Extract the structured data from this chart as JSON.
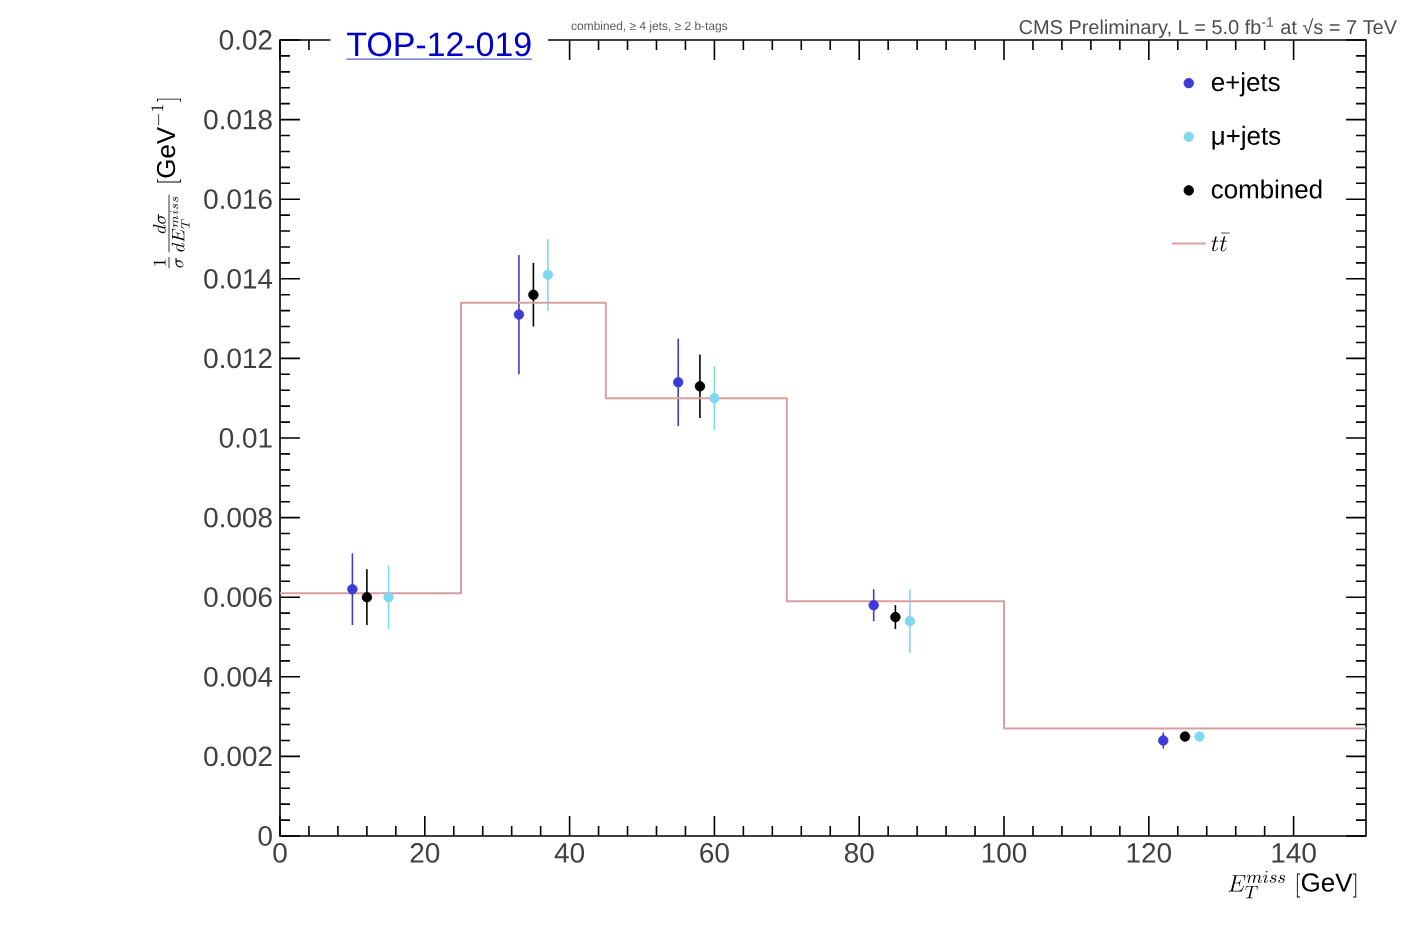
{
  "chart_data": {
    "type": "scatter",
    "title": "CMS Preliminary, L = 5.0 fb$^{-1}$ at √s = 7 TeV",
    "subtitle": "combined, ≥ 4 jets, ≥ 2 b-tags",
    "xlabel": "E_{T}^{miss}\\ [\\mathrm{GeV}]",
    "ylabel": "\\frac{1}{\\sigma}\\frac{d\\sigma}{dE_{T}^{miss}}\\ [\\mathrm{GeV}^{-1}]",
    "annotations": [
      "TOP-12-019"
    ],
    "xlim": [
      0,
      150
    ],
    "xticks": [
      0,
      20,
      40,
      60,
      80,
      100,
      120,
      140
    ],
    "ylim": [
      0,
      0.02
    ],
    "yticks": [
      0,
      0.002,
      0.004,
      0.006,
      0.008,
      0.01,
      0.012,
      0.014,
      0.016,
      0.018,
      0.02
    ],
    "grid": false,
    "legend": "top right",
    "series": [
      {
        "name": "e+jets",
        "color": "#3b3bd6",
        "x": [
          10,
          33,
          55,
          82,
          122
        ],
        "values": [
          0.0062,
          0.0131,
          0.0114,
          0.0058,
          0.0024
        ],
        "errors": [
          0.0009,
          0.0015,
          0.0011,
          0.0004,
          0.0002
        ]
      },
      {
        "name": "μ+jets",
        "color": "#7fd8f0",
        "x": [
          15,
          37,
          60,
          87,
          127
        ],
        "values": [
          0.006,
          0.0141,
          0.011,
          0.0054,
          0.0025
        ],
        "errors": [
          0.0008,
          0.0009,
          0.0008,
          0.0008,
          0.0001
        ]
      },
      {
        "name": "combined",
        "color": "#000000",
        "x": [
          12,
          35,
          58,
          85,
          125
        ],
        "values": [
          0.006,
          0.0136,
          0.0113,
          0.0055,
          0.0025
        ],
        "errors": [
          0.0007,
          0.0008,
          0.0008,
          0.0003,
          0.0001
        ]
      },
      {
        "name": "t\\bar{t}",
        "type": "histogram",
        "color": "#d9a0a0",
        "line_style": "solid",
        "bins": [
          0,
          25,
          45,
          70,
          100,
          150
        ],
        "values": [
          0.0061,
          0.0134,
          0.011,
          0.0059,
          0.0027
        ]
      }
    ]
  }
}
